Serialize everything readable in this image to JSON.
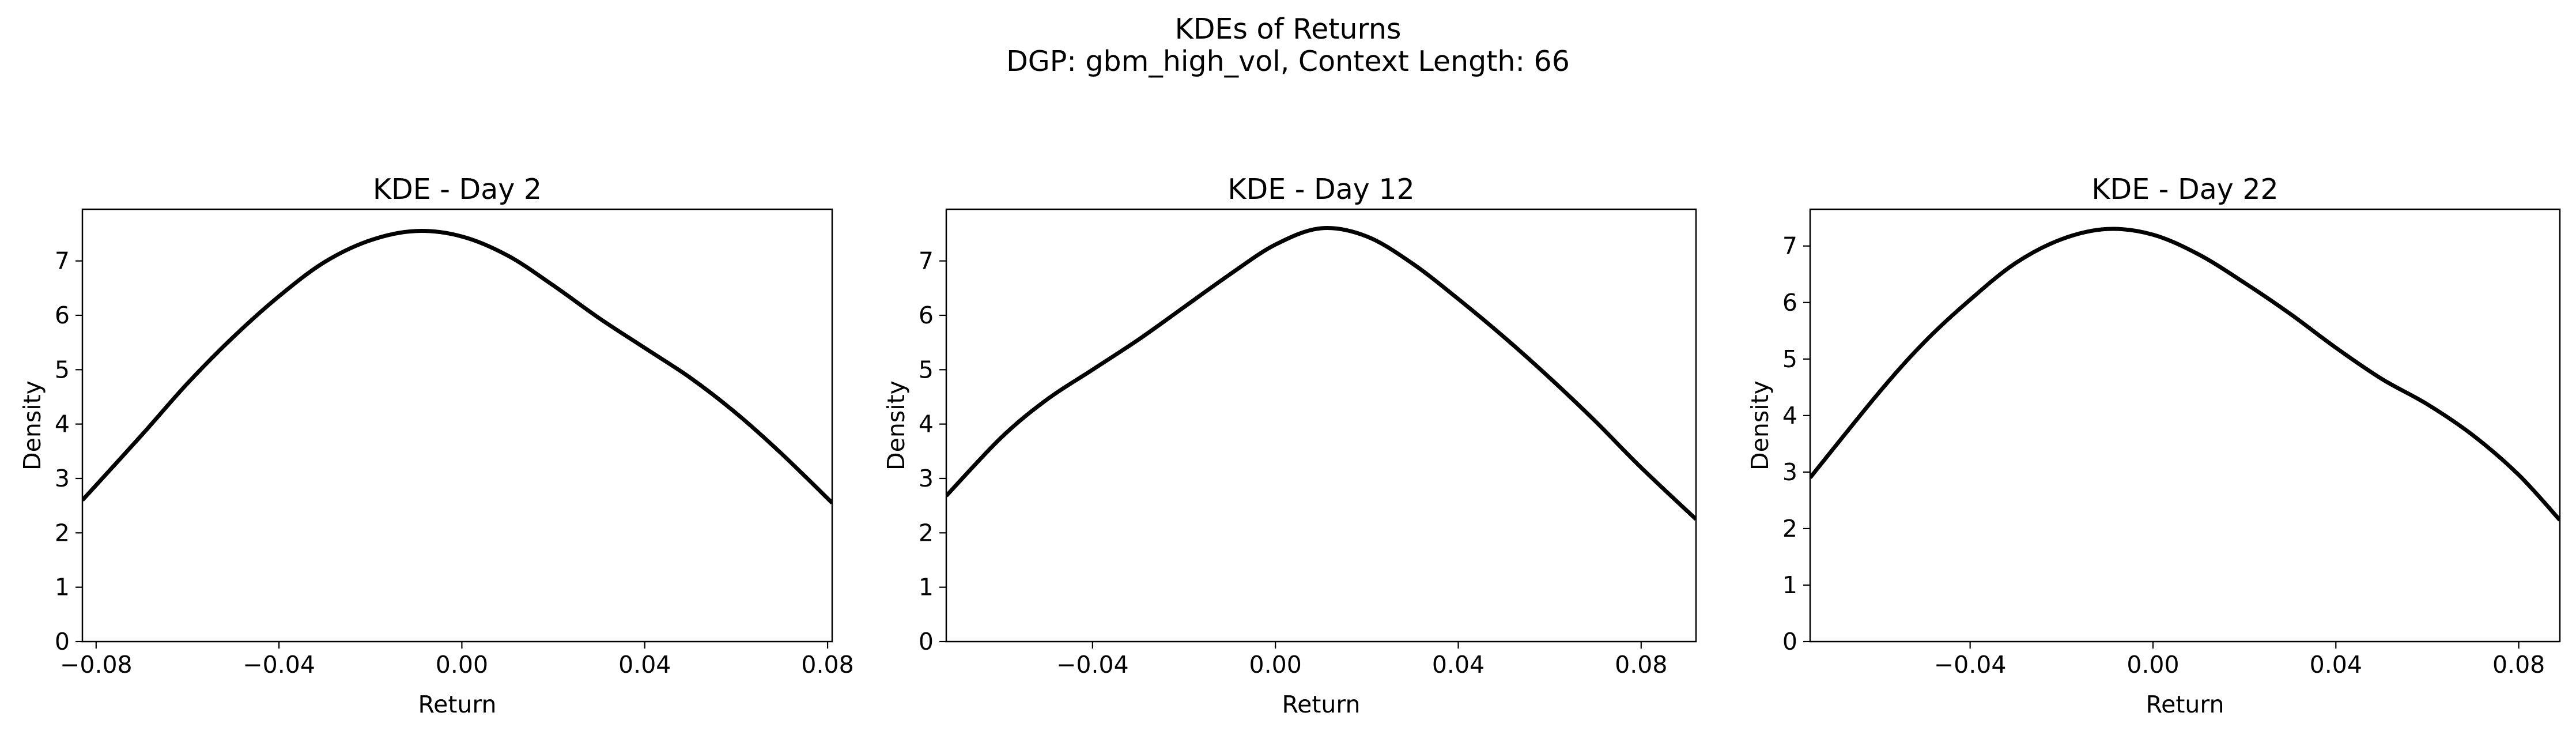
{
  "figure": {
    "title": "KDEs of Returns",
    "subtitle": "DGP: gbm_high_vol, Context Length: 66"
  },
  "chart_data": [
    {
      "type": "line",
      "title": "KDE - Day 2",
      "xlabel": "Return",
      "ylabel": "Density",
      "xlim": [
        -0.083,
        0.081
      ],
      "ylim": [
        0,
        7.95
      ],
      "xticks": [
        -0.08,
        -0.04,
        0.0,
        0.04,
        0.08
      ],
      "xtick_labels": [
        "−0.08",
        "−0.04",
        "0.00",
        "0.04",
        "0.08"
      ],
      "yticks": [
        0,
        1,
        2,
        3,
        4,
        5,
        6,
        7
      ],
      "ytick_labels": [
        "0",
        "1",
        "2",
        "3",
        "4",
        "5",
        "6",
        "7"
      ],
      "grid": false,
      "series": [
        {
          "color": "#000000",
          "x": [
            -0.083,
            -0.07,
            -0.06,
            -0.05,
            -0.04,
            -0.03,
            -0.02,
            -0.01,
            0.0,
            0.01,
            0.02,
            0.03,
            0.04,
            0.05,
            0.06,
            0.07,
            0.081
          ],
          "y": [
            2.6,
            3.8,
            4.75,
            5.6,
            6.35,
            6.98,
            7.38,
            7.55,
            7.45,
            7.1,
            6.55,
            5.95,
            5.4,
            4.85,
            4.2,
            3.45,
            2.55
          ]
        }
      ]
    },
    {
      "type": "line",
      "title": "KDE - Day 12",
      "xlabel": "Return",
      "ylabel": "Density",
      "xlim": [
        -0.072,
        0.092
      ],
      "ylim": [
        0,
        7.95
      ],
      "xticks": [
        -0.04,
        0.0,
        0.04,
        0.08
      ],
      "xtick_labels": [
        "−0.04",
        "0.00",
        "0.04",
        "0.08"
      ],
      "yticks": [
        0,
        1,
        2,
        3,
        4,
        5,
        6,
        7
      ],
      "ytick_labels": [
        "0",
        "1",
        "2",
        "3",
        "4",
        "5",
        "6",
        "7"
      ],
      "grid": false,
      "series": [
        {
          "color": "#000000",
          "x": [
            -0.072,
            -0.06,
            -0.05,
            -0.04,
            -0.03,
            -0.02,
            -0.01,
            0.0,
            0.01,
            0.02,
            0.03,
            0.04,
            0.05,
            0.06,
            0.07,
            0.08,
            0.092
          ],
          "y": [
            2.68,
            3.75,
            4.45,
            5.0,
            5.55,
            6.15,
            6.75,
            7.3,
            7.6,
            7.45,
            6.95,
            6.3,
            5.6,
            4.85,
            4.05,
            3.2,
            2.25
          ]
        }
      ]
    },
    {
      "type": "line",
      "title": "KDE - Day 22",
      "xlabel": "Return",
      "ylabel": "Density",
      "xlim": [
        -0.075,
        0.089
      ],
      "ylim": [
        0,
        7.65
      ],
      "xticks": [
        -0.04,
        0.0,
        0.04,
        0.08
      ],
      "xtick_labels": [
        "−0.04",
        "0.00",
        "0.04",
        "0.08"
      ],
      "yticks": [
        0,
        1,
        2,
        3,
        4,
        5,
        6,
        7
      ],
      "ytick_labels": [
        "0",
        "1",
        "2",
        "3",
        "4",
        "5",
        "6",
        "7"
      ],
      "grid": false,
      "series": [
        {
          "color": "#000000",
          "x": [
            -0.075,
            -0.06,
            -0.05,
            -0.04,
            -0.03,
            -0.02,
            -0.01,
            0.0,
            0.01,
            0.02,
            0.03,
            0.04,
            0.05,
            0.06,
            0.07,
            0.08,
            0.089
          ],
          "y": [
            2.9,
            4.4,
            5.3,
            6.05,
            6.7,
            7.12,
            7.3,
            7.2,
            6.85,
            6.35,
            5.8,
            5.2,
            4.65,
            4.2,
            3.65,
            2.95,
            2.15
          ]
        }
      ]
    }
  ]
}
